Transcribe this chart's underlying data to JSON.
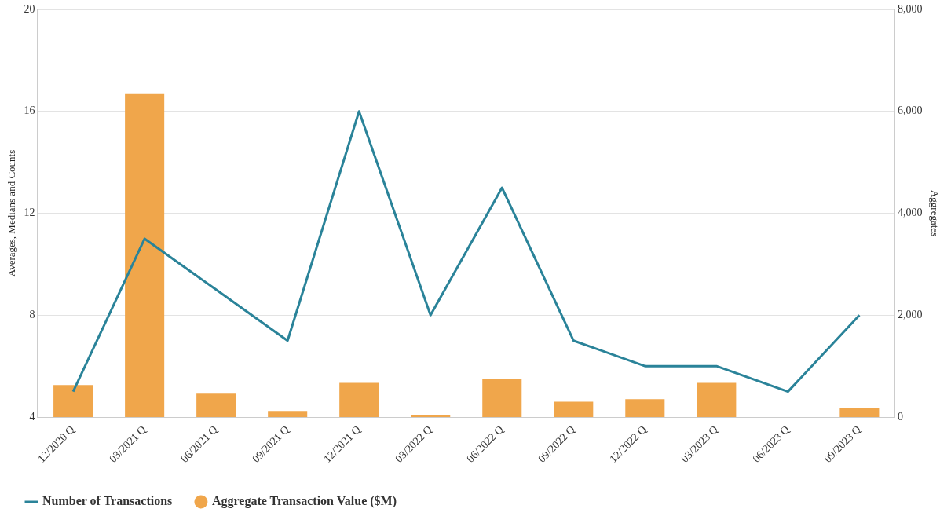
{
  "chart_data": {
    "type": "bar",
    "categories": [
      "12/2020 Q",
      "03/2021 Q",
      "06/2021 Q",
      "09/2021 Q",
      "12/2021 Q",
      "03/2022 Q",
      "06/2022 Q",
      "09/2022 Q",
      "12/2022 Q",
      "03/2023 Q",
      "06/2023 Q",
      "09/2023 Q"
    ],
    "series": [
      {
        "name": "Number of Transactions",
        "type": "line",
        "color": "#2a8399",
        "values": [
          5,
          11,
          9,
          7,
          16,
          8,
          13,
          7,
          6,
          6,
          5,
          8
        ]
      },
      {
        "name": "Aggregate Transaction Value ($M)",
        "axis": "y2",
        "color": "#f0a64b",
        "values": [
          630,
          6340,
          460,
          120,
          670,
          40,
          750,
          300,
          350,
          670,
          null,
          180
        ]
      }
    ],
    "ylabel": "Averages, Medians and Counts",
    "y2label": "Aggregates",
    "ylim": [
      4,
      20
    ],
    "yticks": [
      4,
      8,
      12,
      16,
      20
    ],
    "y2lim": [
      0,
      8000
    ],
    "y2ticks": [
      {
        "value": 0,
        "label": "0"
      },
      {
        "value": 2000,
        "label": "2,000"
      },
      {
        "value": 4000,
        "label": "4,000"
      },
      {
        "value": 6000,
        "label": "6,000"
      },
      {
        "value": 8000,
        "label": "8,000"
      }
    ],
    "grid": "y",
    "legend": "bottom left",
    "marker": "none",
    "line_style": "solid"
  }
}
